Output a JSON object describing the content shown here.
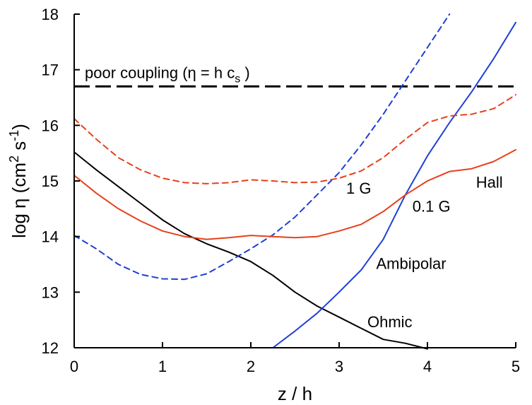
{
  "chart_data": {
    "type": "line",
    "xlabel": "z / h",
    "xlim": [
      0,
      5
    ],
    "ylim": [
      12,
      18
    ],
    "x_ticks": [
      0,
      1,
      2,
      3,
      4,
      5
    ],
    "y_ticks": [
      12,
      13,
      14,
      15,
      16,
      17,
      18
    ],
    "ylabel": {
      "prefix": "log η (cm",
      "sup1": "2",
      "mid": " s",
      "sup2": "-1",
      "suffix": ")"
    },
    "reference_line": {
      "y": 16.7,
      "style": "dashed",
      "color": "#000000",
      "label": {
        "prefix": "poor coupling (η = h c",
        "sub": "s",
        "suffix": " )"
      }
    },
    "series": [
      {
        "key": "ohmic",
        "color": "#000000",
        "style": "solid",
        "x": [
          0,
          0.25,
          0.5,
          0.75,
          1.0,
          1.25,
          1.5,
          1.75,
          2.0,
          2.25,
          2.5,
          2.75,
          3.0,
          3.25,
          3.5,
          3.75,
          4.0
        ],
        "y": [
          15.52,
          15.2,
          14.9,
          14.6,
          14.3,
          14.05,
          13.87,
          13.72,
          13.55,
          13.3,
          13.0,
          12.75,
          12.55,
          12.35,
          12.15,
          12.08,
          11.98
        ]
      },
      {
        "key": "ambipolar",
        "color": "#1f3fd6",
        "style": "solid",
        "x": [
          2.25,
          2.5,
          2.75,
          3.0,
          3.25,
          3.5,
          3.75,
          4.0,
          4.25,
          4.5,
          4.75,
          5.0
        ],
        "y": [
          12.0,
          12.3,
          12.62,
          13.0,
          13.4,
          13.95,
          14.75,
          15.45,
          16.05,
          16.6,
          17.2,
          17.85
        ]
      },
      {
        "key": "ambipolar-1g",
        "color": "#1f3fd6",
        "style": "dashed",
        "x": [
          0,
          0.25,
          0.5,
          0.75,
          1.0,
          1.25,
          1.5,
          1.75,
          2.0,
          2.25,
          2.5,
          2.75,
          3.0,
          3.25,
          3.5,
          3.75,
          4.0,
          4.25
        ],
        "y": [
          14.02,
          13.78,
          13.5,
          13.32,
          13.24,
          13.23,
          13.33,
          13.55,
          13.78,
          14.03,
          14.35,
          14.75,
          15.15,
          15.65,
          16.2,
          16.8,
          17.4,
          18.0
        ]
      },
      {
        "key": "hall-0.1g",
        "color": "#e8401c",
        "style": "solid",
        "x": [
          0,
          0.25,
          0.5,
          0.75,
          1.0,
          1.25,
          1.5,
          1.75,
          2.0,
          2.25,
          2.5,
          2.75,
          3.0,
          3.25,
          3.5,
          3.75,
          4.0,
          4.25,
          4.5,
          4.75,
          5.0
        ],
        "y": [
          15.1,
          14.78,
          14.5,
          14.28,
          14.1,
          14.0,
          13.95,
          13.98,
          14.02,
          14.0,
          13.98,
          14.0,
          14.1,
          14.22,
          14.45,
          14.75,
          15.0,
          15.17,
          15.22,
          15.35,
          15.56
        ]
      },
      {
        "key": "hall-1g",
        "color": "#e8401c",
        "style": "dashed",
        "x": [
          0,
          0.25,
          0.5,
          0.75,
          1.0,
          1.25,
          1.5,
          1.75,
          2.0,
          2.25,
          2.5,
          2.75,
          3.0,
          3.25,
          3.5,
          3.75,
          4.0,
          4.25,
          4.5,
          4.75,
          5.0
        ],
        "y": [
          16.12,
          15.75,
          15.42,
          15.2,
          15.05,
          14.97,
          14.95,
          14.97,
          15.02,
          15.0,
          14.97,
          14.98,
          15.05,
          15.18,
          15.42,
          15.75,
          16.05,
          16.17,
          16.2,
          16.3,
          16.55
        ]
      }
    ],
    "annotations": [
      {
        "key": "ohmic",
        "text": "Ohmic",
        "x": 3.32,
        "y": 12.37
      },
      {
        "key": "ambipolar",
        "text": "Ambipolar",
        "x": 3.42,
        "y": 13.42
      },
      {
        "key": "hall",
        "text": "Hall",
        "x": 4.55,
        "y": 14.88
      },
      {
        "key": "0.1g",
        "text": "0.1 G",
        "x": 3.83,
        "y": 14.45
      },
      {
        "key": "1g",
        "text": "1 G",
        "x": 3.08,
        "y": 14.77
      }
    ]
  }
}
